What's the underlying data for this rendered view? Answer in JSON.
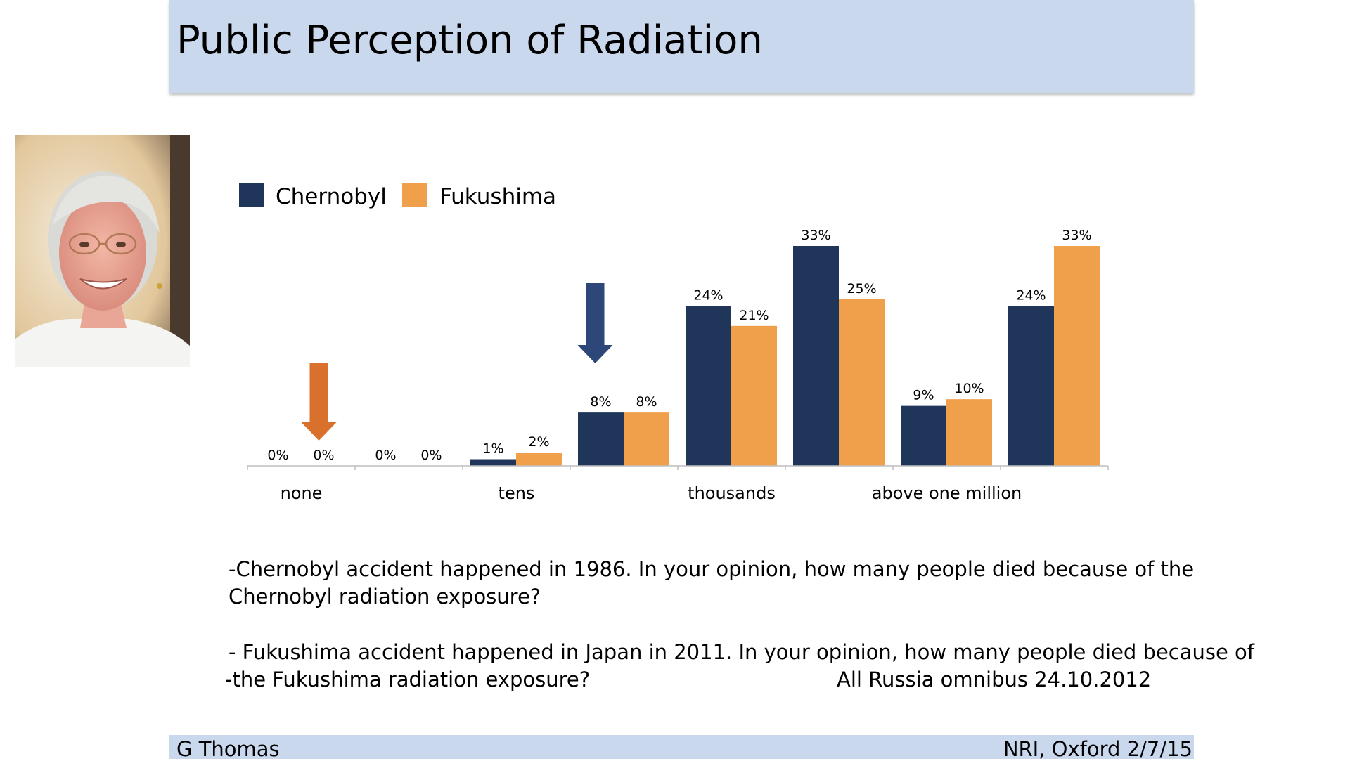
{
  "slide": {
    "title": "Public Perception of Radiation"
  },
  "notes": {
    "chernobyl_line1": "-Chernobyl accident happened in 1986. In your opinion, how many people died because of the",
    "chernobyl_line2": "Chernobyl radiation exposure?",
    "fukushima_line1": "- Fukushima accident happened in Japan in 2011. In your opinion, how many people died because of",
    "fukushima_line2": "-the Fukushima radiation exposure?",
    "source": "All Russia omnibus 24.10.2012"
  },
  "footer": {
    "left": "G Thomas",
    "right": "NRI, Oxford 2/7/15"
  },
  "colors": {
    "title_band": "#cad8ee",
    "chernobyl": "#1f3559",
    "fukushima": "#f0a04b",
    "arrow_orange": "#d9702c",
    "arrow_blue": "#2c4778"
  },
  "chart_data": {
    "type": "bar",
    "categories": [
      "none",
      "",
      "tens",
      "",
      "thousands",
      "",
      "above one million",
      ""
    ],
    "series": [
      {
        "name": "Chernobyl",
        "values": [
          0,
          0,
          1,
          8,
          24,
          33,
          9,
          24
        ],
        "labels": [
          "0%",
          "0%",
          "1%",
          "8%",
          "24%",
          "33%",
          "9%",
          "24%"
        ]
      },
      {
        "name": "Fukushima",
        "values": [
          0,
          0,
          2,
          8,
          21,
          25,
          10,
          33
        ],
        "labels": [
          "0%",
          "0%",
          "2%",
          "8%",
          "21%",
          "25%",
          "10%",
          "33%"
        ]
      }
    ],
    "ylim": [
      0,
      33
    ],
    "legend": "top-left",
    "grid": false,
    "annotations": [
      {
        "type": "arrow",
        "color": "orange",
        "points_to": "Fukushima, none"
      },
      {
        "type": "arrow",
        "color": "blue",
        "points_to": "Chernobyl, 4th group"
      }
    ]
  }
}
